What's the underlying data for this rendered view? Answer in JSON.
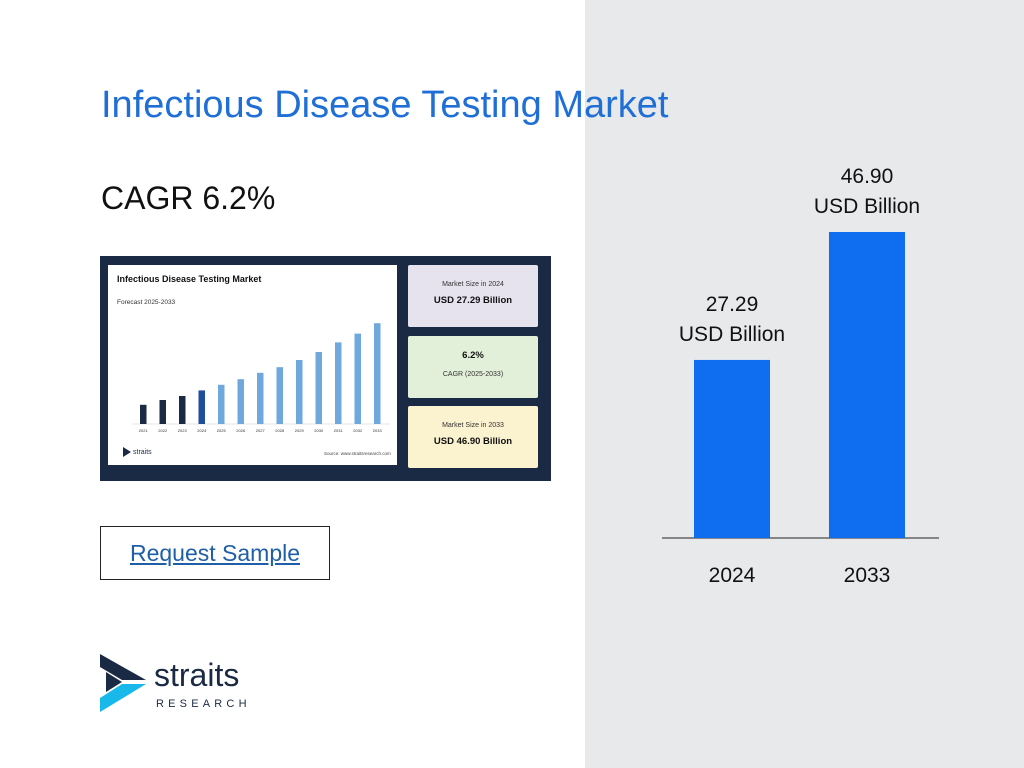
{
  "page": {
    "title": "Infectious Disease Testing Market",
    "cagr": "CAGR 6.2%",
    "request_button": "Request Sample",
    "logo": {
      "word": "straits",
      "sub": "RESEARCH"
    }
  },
  "thumbnail": {
    "title": "Infectious Disease Testing Market",
    "subtitle": "Forecast 2025-2033",
    "logo": "straits",
    "source": "Source: www.straitsresearch.com",
    "box1": {
      "label": "Market Size in 2024",
      "value": "USD 27.29 Billion"
    },
    "box2": {
      "value": "6.2%",
      "label": "CAGR (2025-2033)"
    },
    "box3": {
      "label": "Market Size in 2033",
      "value": "USD 46.90 Billion"
    },
    "years": [
      "2021",
      "2022",
      "2023",
      "2024",
      "2025",
      "2026",
      "2027",
      "2028",
      "2029",
      "2030",
      "2031",
      "2032",
      "2033"
    ],
    "heights": [
      0.24,
      0.3,
      0.35,
      0.42,
      0.49,
      0.56,
      0.64,
      0.71,
      0.8,
      0.9,
      1.02,
      1.13,
      1.26
    ],
    "colors": {
      "historic": "#1b2a44",
      "current": "#1f4e9c",
      "forecast": "#6fa8dc"
    }
  },
  "chart_data": {
    "type": "bar",
    "categories": [
      "2024",
      "2033"
    ],
    "values": [
      27.29,
      46.9
    ],
    "data_labels": [
      [
        "27.29",
        "USD Billion"
      ],
      [
        "46.90",
        "USD Billion"
      ]
    ],
    "title": "",
    "xlabel": "",
    "ylabel": "",
    "ylim": [
      0,
      46.9
    ],
    "grid": false,
    "bar_color": "#0f6df0"
  },
  "colors": {
    "accent": "#1f6fd6",
    "panel": "#e8e9eb",
    "brand_dark": "#1b2a44",
    "brand_cyan": "#19b8ea"
  }
}
